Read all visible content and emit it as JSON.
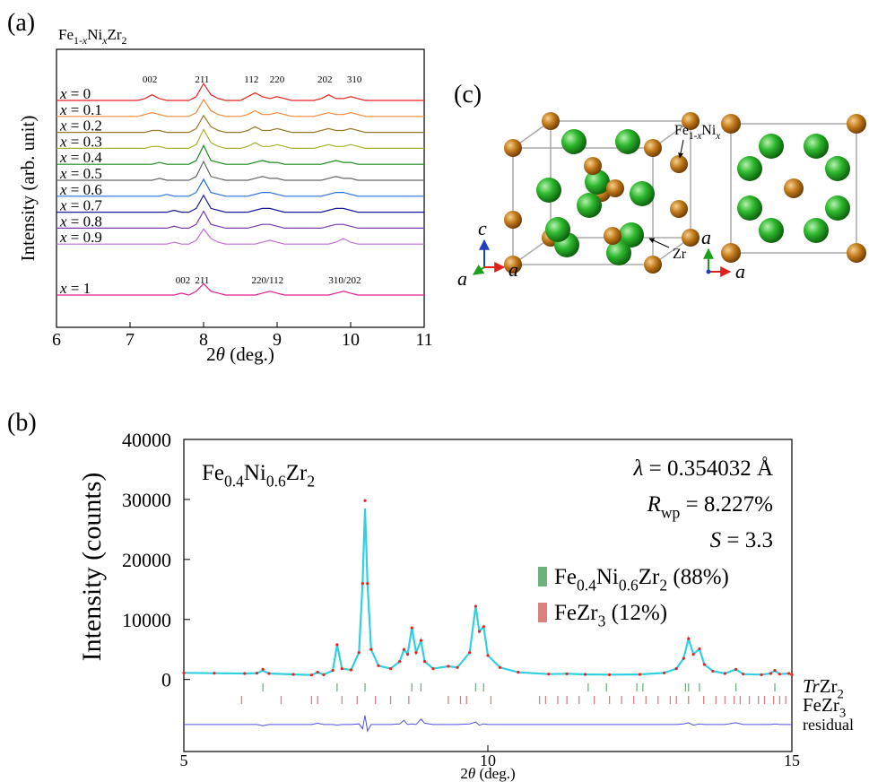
{
  "chart_data": [
    {
      "type": "line",
      "panel_label": "(a)",
      "title": "Fe1-xNixZr2",
      "xlabel": "2θ (deg.)",
      "ylabel": "Intensity (arb. unit)",
      "xlim": [
        6,
        11
      ],
      "xticks": [
        6,
        7,
        8,
        9,
        10,
        11
      ],
      "x": [
        6,
        6.1,
        6.2,
        6.3,
        6.4,
        6.5,
        6.6,
        6.7,
        6.8,
        6.9,
        7,
        7.1,
        7.2,
        7.3,
        7.4,
        7.5,
        7.6,
        7.7,
        7.8,
        7.9,
        8,
        8.1,
        8.2,
        8.3,
        8.4,
        8.5,
        8.6,
        8.7,
        8.8,
        8.9,
        9,
        9.1,
        9.2,
        9.3,
        9.4,
        9.5,
        9.6,
        9.7,
        9.8,
        9.9,
        10,
        10.1,
        10.2,
        10.3,
        10.4,
        10.5,
        10.6,
        10.7,
        10.8,
        10.9,
        11
      ],
      "series": [
        {
          "name": "x = 0",
          "color": "#e8231f",
          "values": [
            0,
            0,
            0,
            0,
            0,
            0,
            0,
            0,
            0,
            0,
            0,
            0,
            1,
            3,
            1,
            0,
            0,
            0,
            0,
            2,
            9,
            3,
            1,
            0,
            0,
            0,
            2,
            4,
            2,
            1,
            2,
            1,
            0,
            0,
            0,
            0,
            1,
            3,
            1,
            1,
            2,
            1,
            0,
            0,
            0,
            0,
            0,
            0,
            0,
            0,
            0
          ]
        },
        {
          "name": "x = 0.1",
          "color": "#f08a3c",
          "values": [
            0,
            0,
            0,
            0,
            0,
            0,
            0,
            0,
            0,
            0,
            0,
            0,
            1,
            2,
            1,
            0,
            0,
            0,
            0,
            2,
            9,
            3,
            1,
            0,
            0,
            0,
            1,
            3,
            1,
            1,
            2,
            1,
            0,
            0,
            0,
            0,
            1,
            2,
            1,
            1,
            2,
            1,
            0,
            0,
            0,
            0,
            0,
            0,
            0,
            0,
            0
          ]
        },
        {
          "name": "x = 0.2",
          "color": "#9a7a2a",
          "values": [
            0,
            0,
            0,
            0,
            0,
            0,
            0,
            0,
            0,
            0,
            0,
            0,
            0,
            1,
            1,
            0,
            0,
            0,
            0,
            2,
            9,
            3,
            1,
            0,
            0,
            0,
            1,
            3,
            1,
            1,
            2,
            1,
            0,
            0,
            0,
            0,
            1,
            2,
            1,
            1,
            2,
            1,
            0,
            0,
            0,
            0,
            0,
            0,
            0,
            0,
            0
          ]
        },
        {
          "name": "x = 0.3",
          "color": "#a8b030",
          "values": [
            0,
            0,
            0,
            0,
            0,
            0,
            0,
            0,
            0,
            0,
            0,
            0,
            0,
            1,
            1,
            0,
            0,
            0,
            0,
            2,
            10,
            3,
            1,
            0,
            0,
            0,
            1,
            3,
            1,
            1,
            2,
            1,
            0,
            0,
            0,
            0,
            1,
            2,
            1,
            1,
            2,
            1,
            0,
            0,
            0,
            0,
            0,
            0,
            0,
            0,
            0
          ]
        },
        {
          "name": "x = 0.4",
          "color": "#1a8a1a",
          "values": [
            0,
            0,
            0,
            0,
            0,
            0,
            0,
            0,
            0,
            0,
            0,
            0,
            0,
            0,
            1,
            0,
            0,
            0,
            0,
            2,
            10,
            2,
            1,
            0,
            0,
            0,
            0,
            1,
            2,
            1,
            1,
            0,
            0,
            0,
            0,
            0,
            0,
            1,
            2,
            1,
            1,
            0,
            0,
            0,
            0,
            0,
            0,
            0,
            0,
            0,
            0
          ]
        },
        {
          "name": "x = 0.5",
          "color": "#666666",
          "values": [
            0,
            0,
            0,
            0,
            0,
            0,
            0,
            0,
            0,
            0,
            0,
            0,
            0,
            0,
            1,
            0,
            0,
            0,
            0,
            2,
            10,
            2,
            1,
            0,
            0,
            0,
            0,
            1,
            2,
            1,
            1,
            0,
            0,
            0,
            0,
            0,
            0,
            1,
            2,
            1,
            1,
            0,
            0,
            0,
            0,
            0,
            0,
            0,
            0,
            0,
            0
          ]
        },
        {
          "name": "x = 0.6",
          "color": "#2a70d8",
          "values": [
            0,
            0,
            0,
            0,
            0,
            0,
            0,
            0,
            0,
            0,
            0,
            0,
            0,
            0,
            0,
            1,
            0,
            0,
            0,
            2,
            9,
            2,
            1,
            0,
            0,
            0,
            0,
            1,
            2,
            2,
            1,
            0,
            0,
            0,
            0,
            0,
            0,
            1,
            2,
            2,
            1,
            0,
            0,
            0,
            0,
            0,
            0,
            0,
            0,
            0,
            0
          ]
        },
        {
          "name": "x = 0.7",
          "color": "#1a1a9a",
          "values": [
            0,
            0,
            0,
            0,
            0,
            0,
            0,
            0,
            0,
            0,
            0,
            0,
            0,
            0,
            0,
            0,
            1,
            0,
            0,
            2,
            9,
            2,
            1,
            0,
            0,
            0,
            0,
            1,
            2,
            2,
            1,
            0,
            0,
            0,
            0,
            0,
            0,
            1,
            2,
            2,
            1,
            0,
            0,
            0,
            0,
            0,
            0,
            0,
            0,
            0,
            0
          ]
        },
        {
          "name": "x = 0.8",
          "color": "#7a3ab0",
          "values": [
            0,
            0,
            0,
            0,
            0,
            0,
            0,
            0,
            0,
            0,
            0,
            0,
            0,
            0,
            0,
            0,
            1,
            0,
            0,
            2,
            9,
            2,
            1,
            0,
            0,
            0,
            0,
            1,
            2,
            2,
            1,
            0,
            0,
            0,
            0,
            0,
            0,
            1,
            2,
            2,
            1,
            0,
            0,
            0,
            0,
            0,
            0,
            0,
            0,
            0,
            0
          ]
        },
        {
          "name": "x = 0.9",
          "color": "#c070d0",
          "values": [
            0,
            0,
            0,
            0,
            0,
            0,
            0,
            0,
            0,
            0,
            0,
            0,
            0,
            0,
            0,
            0,
            1,
            0,
            0,
            2,
            8,
            3,
            1,
            0,
            0,
            0,
            0,
            0,
            1,
            2,
            1,
            0,
            0,
            0,
            0,
            0,
            0,
            0,
            1,
            3,
            1,
            0,
            0,
            0,
            0,
            0,
            0,
            0,
            0,
            0,
            0
          ]
        },
        {
          "name": "x = 1",
          "color": "#e0208a",
          "values": [
            0,
            0,
            0,
            0,
            0,
            0,
            0,
            0,
            0,
            0,
            0,
            0,
            0,
            0,
            0,
            0,
            0,
            1,
            0,
            2,
            6,
            2,
            1,
            0,
            0,
            0,
            0,
            0,
            1,
            2,
            1,
            0,
            0,
            0,
            0,
            0,
            0,
            0,
            1,
            2,
            1,
            0,
            0,
            0,
            0,
            0,
            0,
            0,
            0,
            0,
            0
          ]
        }
      ],
      "peak_labels_top": [
        {
          "text": "002",
          "x": 7.27
        },
        {
          "text": "211",
          "x": 7.98
        },
        {
          "text": "112",
          "x": 8.65
        },
        {
          "text": "220",
          "x": 9.0
        },
        {
          "text": "202",
          "x": 9.65
        },
        {
          "text": "310",
          "x": 10.05
        }
      ],
      "peak_labels_bottom": [
        {
          "text": "002",
          "x": 7.72
        },
        {
          "text": "211",
          "x": 7.98
        },
        {
          "text": "220/112",
          "x": 8.87
        },
        {
          "text": "310/202",
          "x": 9.92
        }
      ]
    },
    {
      "type": "line",
      "panel_label": "(b)",
      "title": "Fe0.4Ni0.6Zr2",
      "annotations": [
        "λ = 0.354032 Å",
        "Rwp = 8.227%",
        "S = 3.3"
      ],
      "xlabel": "2θ (deg.)",
      "ylabel": "Intensity (counts)",
      "xlim": [
        5,
        15
      ],
      "xticks": [
        5,
        10,
        15
      ],
      "ylim": [
        -12000,
        40000
      ],
      "yticks": [
        0,
        10000,
        20000,
        30000,
        40000
      ],
      "x": [
        5,
        5.5,
        6,
        6.2,
        6.3,
        6.4,
        6.8,
        7.1,
        7.2,
        7.3,
        7.45,
        7.52,
        7.6,
        7.75,
        7.88,
        7.94,
        7.98,
        8.02,
        8.08,
        8.2,
        8.4,
        8.55,
        8.62,
        8.68,
        8.75,
        8.82,
        8.9,
        8.96,
        9.1,
        9.35,
        9.5,
        9.7,
        9.8,
        9.86,
        9.93,
        10,
        10.2,
        10.5,
        11,
        11.3,
        11.6,
        12,
        12.5,
        12.9,
        13.1,
        13.22,
        13.3,
        13.38,
        13.48,
        13.56,
        13.7,
        13.9,
        14.08,
        14.2,
        14.5,
        14.65,
        14.72,
        14.8,
        14.95,
        15
      ],
      "series": [
        {
          "style": "line",
          "color": "#30d0e0",
          "values": [
            1100,
            1050,
            1000,
            1050,
            1500,
            1000,
            850,
            750,
            1200,
            800,
            1500,
            5800,
            1800,
            1600,
            4500,
            16000,
            28500,
            16000,
            5000,
            2300,
            1800,
            3000,
            5000,
            4200,
            8600,
            4500,
            6500,
            3000,
            1800,
            2200,
            2000,
            4500,
            12200,
            8000,
            8800,
            4000,
            2000,
            1200,
            900,
            950,
            850,
            800,
            850,
            1100,
            1800,
            3500,
            6800,
            4200,
            5100,
            2500,
            1400,
            1000,
            1700,
            900,
            800,
            1000,
            1500,
            900,
            1000,
            800
          ]
        },
        {
          "style": "dots",
          "color": "#e8231f",
          "values": [
            1100,
            1050,
            1000,
            1050,
            1700,
            1000,
            850,
            750,
            1200,
            800,
            1500,
            5800,
            1800,
            1600,
            4500,
            16000,
            29800,
            16000,
            5000,
            2300,
            1800,
            3000,
            5000,
            4200,
            8600,
            4500,
            6500,
            3000,
            1800,
            2200,
            2000,
            4500,
            12200,
            8000,
            8800,
            4000,
            2000,
            1200,
            900,
            950,
            850,
            800,
            850,
            1100,
            1800,
            3500,
            6800,
            4200,
            5100,
            2500,
            1400,
            1000,
            1700,
            900,
            800,
            1000,
            1500,
            900,
            1000,
            800
          ]
        },
        {
          "style": "line",
          "name": "residual",
          "color": "#5050e0",
          "values": [
            -7500,
            -7500,
            -7500,
            -7500,
            -7700,
            -7500,
            -7500,
            -7500,
            -7300,
            -7500,
            -7500,
            -7600,
            -7500,
            -7500,
            -7400,
            -8200,
            -6000,
            -8600,
            -7500,
            -7500,
            -7500,
            -7400,
            -6800,
            -7500,
            -7400,
            -7500,
            -6600,
            -7300,
            -7500,
            -7500,
            -7500,
            -7400,
            -7100,
            -7600,
            -7400,
            -7500,
            -7500,
            -7500,
            -7500,
            -7500,
            -7500,
            -7500,
            -7500,
            -7500,
            -7500,
            -7400,
            -7200,
            -7600,
            -7400,
            -7500,
            -7500,
            -7500,
            -7200,
            -7500,
            -7500,
            -7500,
            -7400,
            -7500,
            -7500,
            -7500
          ]
        }
      ],
      "phases": [
        {
          "name": "TrZr2",
          "legend": "Fe0.4Ni0.6Zr2 (88%)",
          "color": "#6fb07f",
          "positions": [
            6.3,
            7.52,
            7.98,
            8.75,
            8.9,
            9.8,
            9.93,
            11.65,
            11.95,
            12.45,
            12.55,
            13.25,
            13.3,
            13.48,
            14.08,
            14.72
          ]
        },
        {
          "name": "FeZr3",
          "legend": "FeZr3 (12%)",
          "color": "#d98080",
          "positions": [
            5.95,
            6.6,
            7.1,
            7.2,
            7.6,
            7.85,
            8.15,
            8.4,
            8.7,
            9.35,
            9.55,
            9.65,
            10.05,
            10.85,
            10.95,
            11.15,
            11.3,
            11.5,
            11.75,
            12,
            12.2,
            12.4,
            12.6,
            12.8,
            13,
            13.1,
            13.3,
            13.55,
            13.75,
            13.9,
            14.05,
            14.15,
            14.3,
            14.45,
            14.55,
            14.7,
            14.8,
            14.9
          ]
        }
      ]
    }
  ],
  "diagram": {
    "panel_label": "(c)",
    "site_labels": [
      "Fe1-xNix",
      "Zr"
    ],
    "axis_labels": [
      "c",
      "a",
      "a",
      "a",
      "a"
    ]
  }
}
